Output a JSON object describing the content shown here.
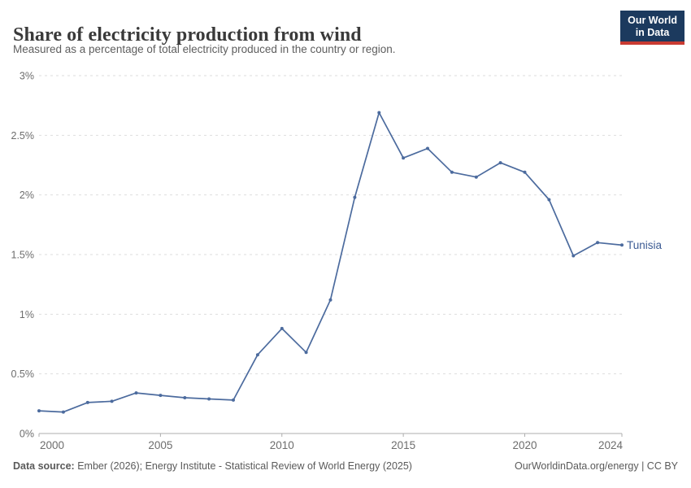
{
  "header": {
    "title": "Share of electricity production from wind",
    "subtitle": "Measured as a percentage of total electricity produced in the country or region.",
    "logo": {
      "line1": "Our World",
      "line2": "in Data",
      "bg_color": "#1c3a5e",
      "accent_color": "#c93b32"
    }
  },
  "chart_data": {
    "type": "line",
    "title": "Share of electricity production from wind",
    "xlabel": "",
    "ylabel": "",
    "x": [
      2000,
      2001,
      2002,
      2003,
      2004,
      2005,
      2006,
      2007,
      2008,
      2009,
      2010,
      2011,
      2012,
      2013,
      2014,
      2015,
      2016,
      2017,
      2018,
      2019,
      2020,
      2021,
      2022,
      2023,
      2024
    ],
    "series": [
      {
        "name": "Tunisia",
        "color": "#4c6b9e",
        "label_color": "#3d5c94",
        "values": [
          0.19,
          0.18,
          0.26,
          0.27,
          0.34,
          0.32,
          0.3,
          0.29,
          0.28,
          0.66,
          0.88,
          0.68,
          1.12,
          1.98,
          2.69,
          2.31,
          2.39,
          2.19,
          2.15,
          2.27,
          2.19,
          1.96,
          1.49,
          1.6,
          1.58
        ]
      }
    ],
    "xlim": [
      2000,
      2024
    ],
    "ylim": [
      0,
      3
    ],
    "x_ticks": [
      2000,
      2005,
      2010,
      2015,
      2020,
      2024
    ],
    "y_ticks": [
      0,
      0.5,
      1,
      1.5,
      2,
      2.5,
      3
    ],
    "y_tick_suffix": "%",
    "grid": "horizontal-dashed",
    "legend_position": "line-end-label"
  },
  "footer": {
    "datasource_label": "Data source:",
    "datasource_text": " Ember (2026); Energy Institute - Statistical Review of World Energy (2025)",
    "link_text": "OurWorldinData.org/energy | CC BY"
  }
}
